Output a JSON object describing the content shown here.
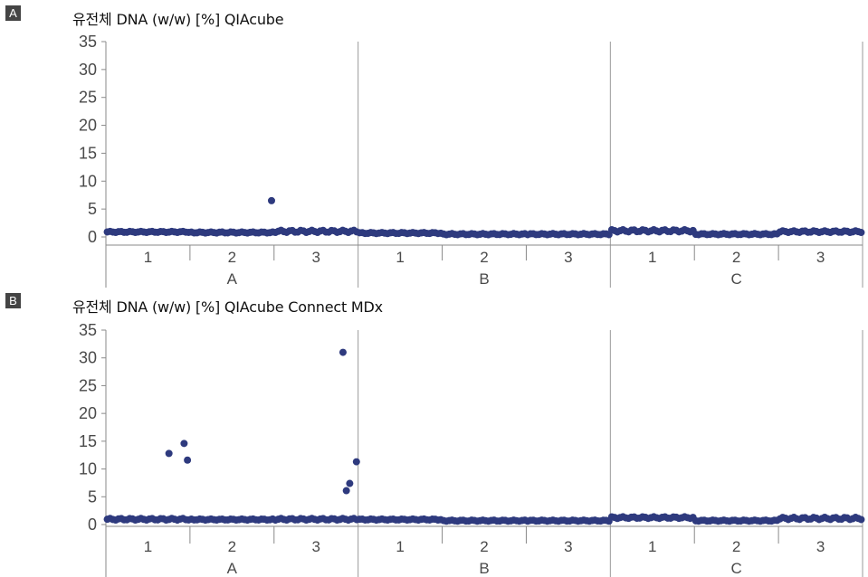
{
  "chart_data": [
    {
      "type": "scatter",
      "panel_label": "A",
      "title": "유전체 DNA (w/w) [%] QIAcube",
      "ylim": [
        0,
        35
      ],
      "yticks": [
        "0",
        "5",
        "10",
        "15",
        "20",
        "25",
        "30",
        "35"
      ],
      "groups": [
        {
          "name": "A",
          "subgroups": [
            "1",
            "2",
            "3"
          ]
        },
        {
          "name": "B",
          "subgroups": [
            "1",
            "2",
            "3"
          ]
        },
        {
          "name": "C",
          "subgroups": [
            "1",
            "2",
            "3"
          ]
        }
      ],
      "points_per_subgroup": 30,
      "baseline": [
        [
          0.8,
          1.0
        ],
        [
          0.7,
          0.9
        ],
        [
          0.8,
          1.2
        ],
        [
          0.6,
          0.8
        ],
        [
          0.4,
          0.6
        ],
        [
          0.4,
          0.6
        ],
        [
          0.9,
          1.3
        ],
        [
          0.4,
          0.6
        ],
        [
          0.8,
          1.1
        ]
      ],
      "outliers": [
        {
          "group": "A",
          "subgroup": "2",
          "position": 0.97,
          "value": 6.5
        }
      ],
      "color": "#2e3a7e"
    },
    {
      "type": "scatter",
      "panel_label": "B",
      "title": "유전체 DNA (w/w) [%] QIAcube Connect MDx",
      "ylim": [
        0,
        35
      ],
      "yticks": [
        "0",
        "5",
        "10",
        "15",
        "20",
        "25",
        "30",
        "35"
      ],
      "groups": [
        {
          "name": "A",
          "subgroups": [
            "1",
            "2",
            "3"
          ]
        },
        {
          "name": "B",
          "subgroups": [
            "1",
            "2",
            "3"
          ]
        },
        {
          "name": "C",
          "subgroups": [
            "1",
            "2",
            "3"
          ]
        }
      ],
      "points_per_subgroup": 30,
      "baseline": [
        [
          0.8,
          1.1
        ],
        [
          0.8,
          1.0
        ],
        [
          0.8,
          1.1
        ],
        [
          0.8,
          1.0
        ],
        [
          0.6,
          0.8
        ],
        [
          0.6,
          0.8
        ],
        [
          1.1,
          1.4
        ],
        [
          0.6,
          0.8
        ],
        [
          0.9,
          1.3
        ]
      ],
      "outliers": [
        {
          "group": "A",
          "subgroup": "1",
          "position": 0.75,
          "value": 12.8
        },
        {
          "group": "A",
          "subgroup": "1",
          "position": 0.93,
          "value": 14.6
        },
        {
          "group": "A",
          "subgroup": "1",
          "position": 0.97,
          "value": 11.6
        },
        {
          "group": "A",
          "subgroup": "3",
          "position": 0.82,
          "value": 31.0
        },
        {
          "group": "A",
          "subgroup": "3",
          "position": 0.86,
          "value": 6.1
        },
        {
          "group": "A",
          "subgroup": "3",
          "position": 0.9,
          "value": 7.4
        },
        {
          "group": "A",
          "subgroup": "3",
          "position": 0.98,
          "value": 11.3
        }
      ],
      "color": "#2e3a7e"
    }
  ]
}
